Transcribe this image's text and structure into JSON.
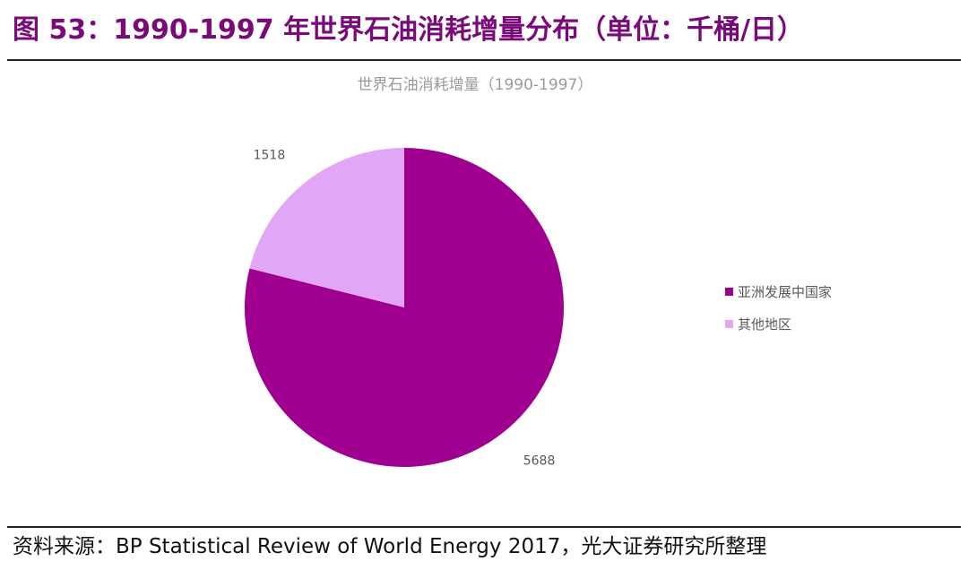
{
  "figure": {
    "title": "图 53：1990-1997 年世界石油消耗增量分布（单位：千桶/日）",
    "source": "资料来源：BP Statistical Review of World Energy 2017，光大证券研究所整理"
  },
  "chart_data": {
    "type": "pie",
    "title": "世界石油消耗增量（1990-1997）",
    "legend_position": "right",
    "slices": [
      {
        "label": "亚洲发展中国家",
        "value": 5688,
        "color": "#a0008f"
      },
      {
        "label": "其他地区",
        "value": 1518,
        "color": "#e1a6f5"
      }
    ]
  }
}
